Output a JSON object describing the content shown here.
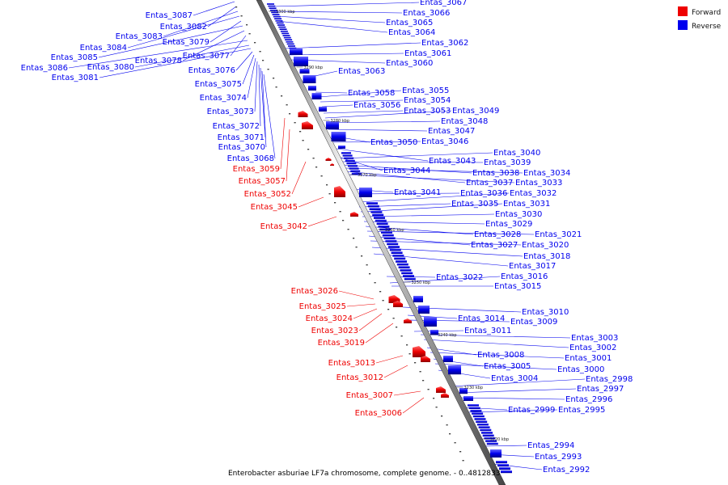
{
  "legend": {
    "forward": {
      "label": "Forward",
      "color": "#ee0000"
    },
    "reverse": {
      "label": "Reverse",
      "color": "#0000ee"
    }
  },
  "caption": "Enterobacter asburiae LF7a chromosome, complete genome. - 0..4812833",
  "axis_ticks": [
    "3300 kbp",
    "3290 kbp",
    "3280 kbp",
    "3270 kbp",
    "3260 kbp",
    "3250 kbp",
    "3240 kbp",
    "3230 kbp",
    "3220 kbp"
  ],
  "forward_labels": [
    "Entas_3059",
    "Entas_3057",
    "Entas_3052",
    "Entas_3045",
    "Entas_3042",
    "Entas_3026",
    "Entas_3025",
    "Entas_3024",
    "Entas_3023",
    "Entas_3019",
    "Entas_3013",
    "Entas_3012",
    "Entas_3007",
    "Entas_3006"
  ],
  "reverse_labels_left": [
    "Entas_3087",
    "Entas_3082",
    "Entas_3083",
    "Entas_3084",
    "Entas_3079",
    "Entas_3085",
    "Entas_3078",
    "Entas_3077",
    "Entas_3086",
    "Entas_3080",
    "Entas_3081",
    "Entas_3076",
    "Entas_3075",
    "Entas_3074",
    "Entas_3073",
    "Entas_3072",
    "Entas_3071",
    "Entas_3070",
    "Entas_3068"
  ],
  "reverse_labels_right": [
    "Entas_3067",
    "Entas_3066",
    "Entas_3065",
    "Entas_3064",
    "Entas_3062",
    "Entas_3061",
    "Entas_3060",
    "Entas_3063",
    "Entas_3058",
    "Entas_3055",
    "Entas_3054",
    "Entas_3056",
    "Entas_3053",
    "Entas_3049",
    "Entas_3048",
    "Entas_3047",
    "Entas_3050",
    "Entas_3046",
    "Entas_3043",
    "Entas_3044",
    "Entas_3040",
    "Entas_3039",
    "Entas_3038",
    "Entas_3034",
    "Entas_3037",
    "Entas_3033",
    "Entas_3041",
    "Entas_3036",
    "Entas_3032",
    "Entas_3035",
    "Entas_3031",
    "Entas_3030",
    "Entas_3029",
    "Entas_3028",
    "Entas_3021",
    "Entas_3027",
    "Entas_3020",
    "Entas_3018",
    "Entas_3017",
    "Entas_3022",
    "Entas_3016",
    "Entas_3015",
    "Entas_3010",
    "Entas_3014",
    "Entas_3009",
    "Entas_3011",
    "Entas_3003",
    "Entas_3002",
    "Entas_3008",
    "Entas_3001",
    "Entas_3005",
    "Entas_3000",
    "Entas_3004",
    "Entas_2998",
    "Entas_2997",
    "Entas_2996",
    "Entas_2999",
    "Entas_2995",
    "Entas_2994",
    "Entas_2993",
    "Entas_2992"
  ]
}
